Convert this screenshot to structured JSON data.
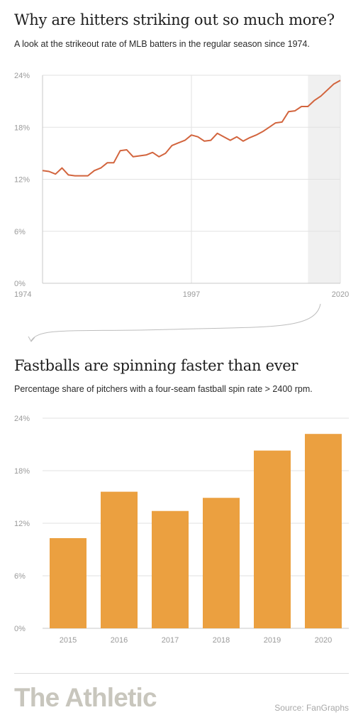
{
  "charts": {
    "strikeout": {
      "title": "Why are hitters striking out so much more?",
      "subtitle": "A look at the strikeout rate of MLB batters in the regular season since 1974."
    },
    "spin": {
      "title": "Fastballs are spinning faster than ever",
      "subtitle": "Percentage share of pitchers with a four-seam fastball spin rate > 2400 rpm."
    }
  },
  "footer": {
    "brand": "The Athletic",
    "source": "Source: FanGraphs"
  },
  "colors": {
    "line": "#d2643d",
    "bar": "#eba040",
    "highlight": "#f0f0f0",
    "grid": "#e2e2e2",
    "axis": "#c8c8c8"
  },
  "chart_data": [
    {
      "type": "line",
      "title": "Why are hitters striking out so much more?",
      "subtitle": "A look at the strikeout rate of MLB batters in the regular season since 1974.",
      "xlabel": "",
      "ylabel": "",
      "xlim": [
        1974,
        2020
      ],
      "ylim": [
        0,
        24
      ],
      "x_ticks": [
        "1974",
        "1997",
        "2020"
      ],
      "y_ticks": [
        "0%",
        "6%",
        "12%",
        "18%",
        "24%"
      ],
      "highlight_range": [
        2015,
        2020
      ],
      "grid": true,
      "x": [
        1974,
        1975,
        1976,
        1977,
        1978,
        1979,
        1980,
        1981,
        1982,
        1983,
        1984,
        1985,
        1986,
        1987,
        1988,
        1989,
        1990,
        1991,
        1992,
        1993,
        1994,
        1995,
        1996,
        1997,
        1998,
        1999,
        2000,
        2001,
        2002,
        2003,
        2004,
        2005,
        2006,
        2007,
        2008,
        2009,
        2010,
        2011,
        2012,
        2013,
        2014,
        2015,
        2016,
        2017,
        2018,
        2019,
        2020
      ],
      "series": [
        {
          "values": [
            13.0,
            12.9,
            12.6,
            13.3,
            12.5,
            12.4,
            12.4,
            12.4,
            13.0,
            13.3,
            13.9,
            13.9,
            15.3,
            15.4,
            14.6,
            14.7,
            14.8,
            15.1,
            14.6,
            15.0,
            15.9,
            16.2,
            16.5,
            17.1,
            16.9,
            16.4,
            16.5,
            17.3,
            16.9,
            16.5,
            16.9,
            16.4,
            16.8,
            17.1,
            17.5,
            18.0,
            18.5,
            18.6,
            19.8,
            19.9,
            20.4,
            20.4,
            21.1,
            21.6,
            22.3,
            23.0,
            23.4
          ]
        }
      ]
    },
    {
      "type": "bar",
      "title": "Fastballs are spinning faster than ever",
      "subtitle": "Percentage share of pitchers with a four-seam fastball spin rate > 2400 rpm.",
      "xlabel": "",
      "ylabel": "",
      "ylim": [
        0,
        24
      ],
      "y_ticks": [
        "0%",
        "6%",
        "12%",
        "18%",
        "24%"
      ],
      "grid": true,
      "categories": [
        "2015",
        "2016",
        "2017",
        "2018",
        "2019",
        "2020"
      ],
      "values": [
        10.3,
        15.6,
        13.4,
        14.9,
        20.3,
        22.2
      ]
    }
  ]
}
